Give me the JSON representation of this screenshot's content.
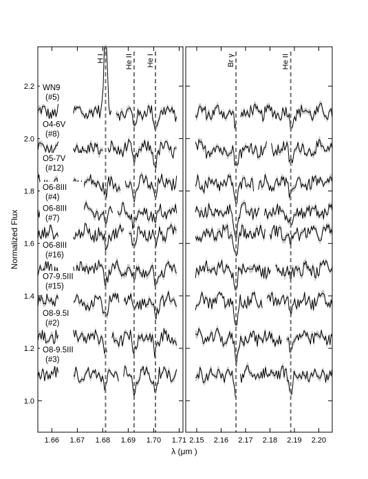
{
  "chart_data": {
    "type": "line",
    "ylabel": "Normalized Flux",
    "xlabel": "λ (μm )",
    "ylim": [
      0.88,
      2.35
    ],
    "yticks": [
      "1.0",
      "1.2",
      "1.4",
      "1.6",
      "1.8",
      "2.0",
      "2.2"
    ],
    "panels": [
      {
        "name": "left",
        "xlim": [
          1.6545,
          1.7115
        ],
        "xticks": [
          "1.66",
          "1.67",
          "1.68",
          "1.69",
          "1.70",
          "1.71"
        ],
        "line_markers": [
          {
            "label": "H I",
            "x": 1.6811
          },
          {
            "label": "He II",
            "x": 1.6923
          },
          {
            "label": "He I",
            "x": 1.7007
          }
        ]
      },
      {
        "name": "right",
        "xlim": [
          2.1455,
          2.2055
        ],
        "xticks": [
          "2.15",
          "2.16",
          "2.17",
          "2.18",
          "2.19",
          "2.20"
        ],
        "line_markers": [
          {
            "label": "Br γ",
            "x": 2.1661
          },
          {
            "label": "He II",
            "x": 2.1885
          }
        ]
      }
    ],
    "series": [
      {
        "name": "WN9",
        "id": "(#5)",
        "base": 2.1
      },
      {
        "name": "O4-6V",
        "id": "(#8)",
        "base": 1.96
      },
      {
        "name": "O5-7V",
        "id": "(#12)",
        "base": 1.83
      },
      {
        "name": "O6-8III",
        "id": "(#4)",
        "base": 1.72
      },
      {
        "name": "O6-8III",
        "id": "(#7)",
        "base": 1.64
      },
      {
        "name": "O6-8III",
        "id": "(#16)",
        "base": 1.5
      },
      {
        "name": "O7-9.5III",
        "id": "(#15)",
        "base": 1.38
      },
      {
        "name": "O8-9.5I",
        "id": "(#2)",
        "base": 1.24
      },
      {
        "name": "O8-9.5III",
        "id": "(#3)",
        "base": 1.1
      }
    ],
    "colors": {
      "spectrum": "#000000",
      "error_band": "#c8c8c8",
      "marker": "#6e6e6e"
    }
  }
}
